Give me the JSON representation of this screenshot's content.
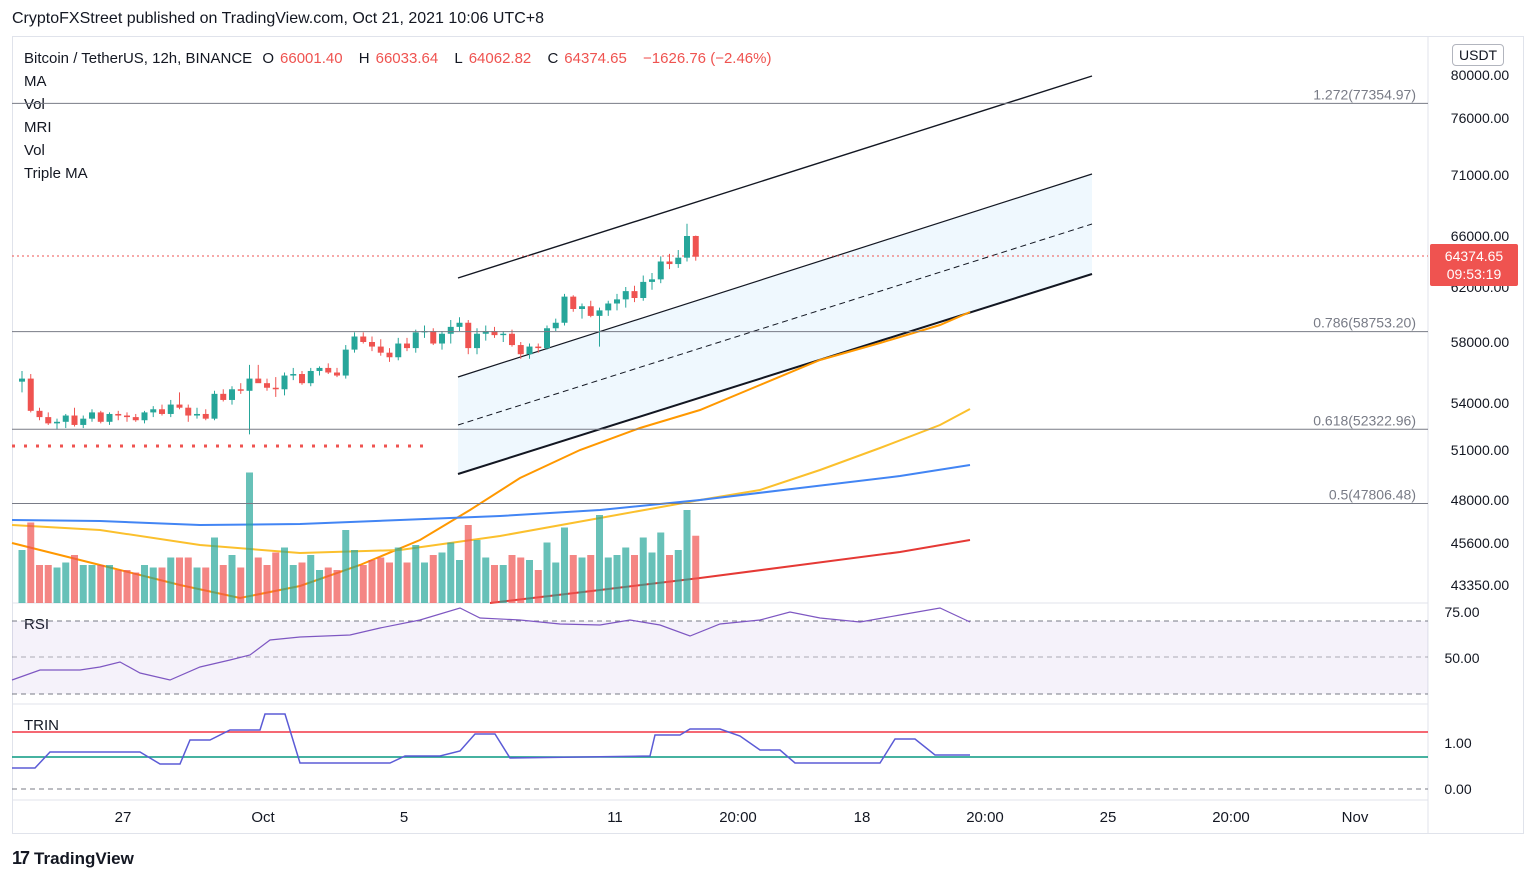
{
  "header": {
    "publisher": "CryptoFXStreet published on TradingView.com, Oct 21, 2021 10:06 UTC+8"
  },
  "legend": {
    "symbol": "Bitcoin / TetherUS, 12h, BINANCE",
    "open_label": "O",
    "open": "66001.40",
    "high_label": "H",
    "high": "66033.64",
    "low_label": "L",
    "low": "64062.82",
    "close_label": "C",
    "close": "64374.65",
    "change": "−1626.76 (−2.46%)",
    "studies": [
      "MA",
      "Vol",
      "MRI",
      "Vol",
      "Triple MA"
    ]
  },
  "currency": "USDT",
  "rsi_label": "RSI",
  "trin_label": "TRIN",
  "footer": {
    "brand": "TradingView"
  },
  "chart_data": {
    "type": "candlestick",
    "symbol": "BTCUSDT",
    "timeframe": "12h",
    "price_axis": {
      "ticks": [
        {
          "label": "80000.00",
          "value": 80000
        },
        {
          "label": "76000.00",
          "value": 76000
        },
        {
          "label": "71000.00",
          "value": 71000
        },
        {
          "label": "66000.00",
          "value": 66000
        },
        {
          "label": "62000.00",
          "value": 62000
        },
        {
          "label": "58000.00",
          "value": 58000
        },
        {
          "label": "54000.00",
          "value": 54000
        },
        {
          "label": "51000.00",
          "value": 51000
        },
        {
          "label": "48000.00",
          "value": 48000
        },
        {
          "label": "45600.00",
          "value": 45600
        },
        {
          "label": "43350.00",
          "value": 43350
        }
      ]
    },
    "current_price": "64374.65",
    "countdown": "09:53:19",
    "time_axis": [
      "27",
      "Oct",
      "5",
      "11",
      "20:00",
      "18",
      "20:00",
      "25",
      "20:00",
      "Nov"
    ],
    "fib_levels": [
      {
        "label": "1.272(77354.97)",
        "value": 77354.97
      },
      {
        "label": "0.786(58753.20)",
        "value": 58753.2
      },
      {
        "label": "0.618(52322.96)",
        "value": 52322.96
      },
      {
        "label": "0.5(47806.48)",
        "value": 47806.48
      }
    ],
    "candles": [
      {
        "o": 55400,
        "h": 56100,
        "l": 54700,
        "c": 55600
      },
      {
        "o": 55600,
        "h": 55900,
        "l": 53400,
        "c": 53500
      },
      {
        "o": 53500,
        "h": 53700,
        "l": 52900,
        "c": 53100
      },
      {
        "o": 53100,
        "h": 53400,
        "l": 52600,
        "c": 52700
      },
      {
        "o": 52700,
        "h": 53000,
        "l": 52300,
        "c": 52800
      },
      {
        "o": 52800,
        "h": 53300,
        "l": 52400,
        "c": 53200
      },
      {
        "o": 53200,
        "h": 53700,
        "l": 52500,
        "c": 52600
      },
      {
        "o": 52600,
        "h": 53200,
        "l": 52400,
        "c": 53000
      },
      {
        "o": 53000,
        "h": 53600,
        "l": 52800,
        "c": 53400
      },
      {
        "o": 53400,
        "h": 53500,
        "l": 52700,
        "c": 52800
      },
      {
        "o": 52800,
        "h": 53400,
        "l": 52600,
        "c": 53300
      },
      {
        "o": 53300,
        "h": 53500,
        "l": 52900,
        "c": 53200
      },
      {
        "o": 53200,
        "h": 53400,
        "l": 52800,
        "c": 53100
      },
      {
        "o": 53100,
        "h": 53300,
        "l": 52800,
        "c": 52900
      },
      {
        "o": 52900,
        "h": 53500,
        "l": 52700,
        "c": 53400
      },
      {
        "o": 53400,
        "h": 53800,
        "l": 53100,
        "c": 53600
      },
      {
        "o": 53600,
        "h": 53900,
        "l": 53200,
        "c": 53300
      },
      {
        "o": 53300,
        "h": 54200,
        "l": 53100,
        "c": 53900
      },
      {
        "o": 53900,
        "h": 54700,
        "l": 53600,
        "c": 53700
      },
      {
        "o": 53700,
        "h": 53900,
        "l": 52800,
        "c": 53200
      },
      {
        "o": 53200,
        "h": 53700,
        "l": 53000,
        "c": 53300
      },
      {
        "o": 53300,
        "h": 53600,
        "l": 52900,
        "c": 53000
      },
      {
        "o": 53000,
        "h": 54800,
        "l": 52900,
        "c": 54600
      },
      {
        "o": 54600,
        "h": 54900,
        "l": 54100,
        "c": 54200
      },
      {
        "o": 54200,
        "h": 55100,
        "l": 53900,
        "c": 54900
      },
      {
        "o": 54900,
        "h": 55300,
        "l": 54600,
        "c": 54800
      },
      {
        "o": 54800,
        "h": 56500,
        "l": 52000,
        "c": 55600
      },
      {
        "o": 55600,
        "h": 56500,
        "l": 55400,
        "c": 55300
      },
      {
        "o": 55300,
        "h": 55600,
        "l": 54800,
        "c": 55000
      },
      {
        "o": 55000,
        "h": 55700,
        "l": 54400,
        "c": 54900
      },
      {
        "o": 54900,
        "h": 56000,
        "l": 54500,
        "c": 55800
      },
      {
        "o": 55800,
        "h": 56300,
        "l": 55500,
        "c": 55900
      },
      {
        "o": 55900,
        "h": 56100,
        "l": 55200,
        "c": 55300
      },
      {
        "o": 55300,
        "h": 56300,
        "l": 55100,
        "c": 56100
      },
      {
        "o": 56100,
        "h": 56400,
        "l": 55800,
        "c": 56300
      },
      {
        "o": 56300,
        "h": 56600,
        "l": 55900,
        "c": 56000
      },
      {
        "o": 56000,
        "h": 56300,
        "l": 55700,
        "c": 55800
      },
      {
        "o": 55800,
        "h": 57800,
        "l": 55600,
        "c": 57500
      },
      {
        "o": 57500,
        "h": 58700,
        "l": 57300,
        "c": 58400
      },
      {
        "o": 58400,
        "h": 58700,
        "l": 57900,
        "c": 58000
      },
      {
        "o": 58000,
        "h": 58400,
        "l": 57400,
        "c": 57700
      },
      {
        "o": 57700,
        "h": 58200,
        "l": 57100,
        "c": 57300
      },
      {
        "o": 57300,
        "h": 57600,
        "l": 56700,
        "c": 57000
      },
      {
        "o": 57000,
        "h": 58300,
        "l": 56800,
        "c": 57900
      },
      {
        "o": 57900,
        "h": 58300,
        "l": 57400,
        "c": 57600
      },
      {
        "o": 57600,
        "h": 58900,
        "l": 57300,
        "c": 58700
      },
      {
        "o": 58700,
        "h": 59200,
        "l": 58300,
        "c": 58800
      },
      {
        "o": 58800,
        "h": 59000,
        "l": 57800,
        "c": 57900
      },
      {
        "o": 57900,
        "h": 58800,
        "l": 57500,
        "c": 58600
      },
      {
        "o": 58600,
        "h": 59600,
        "l": 57900,
        "c": 59100
      },
      {
        "o": 59100,
        "h": 59800,
        "l": 58800,
        "c": 59400
      },
      {
        "o": 59400,
        "h": 59600,
        "l": 57200,
        "c": 57600
      },
      {
        "o": 57600,
        "h": 59000,
        "l": 57200,
        "c": 58600
      },
      {
        "o": 58600,
        "h": 59200,
        "l": 58100,
        "c": 58800
      },
      {
        "o": 58800,
        "h": 59100,
        "l": 58300,
        "c": 58500
      },
      {
        "o": 58500,
        "h": 58800,
        "l": 58000,
        "c": 58600
      },
      {
        "o": 58600,
        "h": 58900,
        "l": 57700,
        "c": 57800
      },
      {
        "o": 57800,
        "h": 58000,
        "l": 56900,
        "c": 57200
      },
      {
        "o": 57200,
        "h": 57900,
        "l": 56900,
        "c": 57700
      },
      {
        "o": 57700,
        "h": 57900,
        "l": 57300,
        "c": 57600
      },
      {
        "o": 57600,
        "h": 59200,
        "l": 57500,
        "c": 59000
      },
      {
        "o": 59000,
        "h": 59700,
        "l": 58800,
        "c": 59400
      },
      {
        "o": 59400,
        "h": 61500,
        "l": 59200,
        "c": 61300
      },
      {
        "o": 61300,
        "h": 61400,
        "l": 60200,
        "c": 60400
      },
      {
        "o": 60400,
        "h": 60800,
        "l": 59700,
        "c": 60600
      },
      {
        "o": 60600,
        "h": 61000,
        "l": 59800,
        "c": 59900
      },
      {
        "o": 59900,
        "h": 60500,
        "l": 57700,
        "c": 60300
      },
      {
        "o": 60300,
        "h": 61000,
        "l": 59900,
        "c": 60800
      },
      {
        "o": 60800,
        "h": 61500,
        "l": 60300,
        "c": 61100
      },
      {
        "o": 61100,
        "h": 62000,
        "l": 60500,
        "c": 61700
      },
      {
        "o": 61700,
        "h": 62100,
        "l": 60900,
        "c": 61200
      },
      {
        "o": 61200,
        "h": 62900,
        "l": 61000,
        "c": 62400
      },
      {
        "o": 62400,
        "h": 63100,
        "l": 61800,
        "c": 62600
      },
      {
        "o": 62600,
        "h": 64400,
        "l": 62300,
        "c": 64000
      },
      {
        "o": 64000,
        "h": 64600,
        "l": 63400,
        "c": 63800
      },
      {
        "o": 63800,
        "h": 64900,
        "l": 63500,
        "c": 64300
      },
      {
        "o": 64300,
        "h": 67000,
        "l": 64000,
        "c": 66000
      },
      {
        "o": 66001.4,
        "h": 66033.64,
        "l": 64062.82,
        "c": 64374.65
      }
    ]
  }
}
